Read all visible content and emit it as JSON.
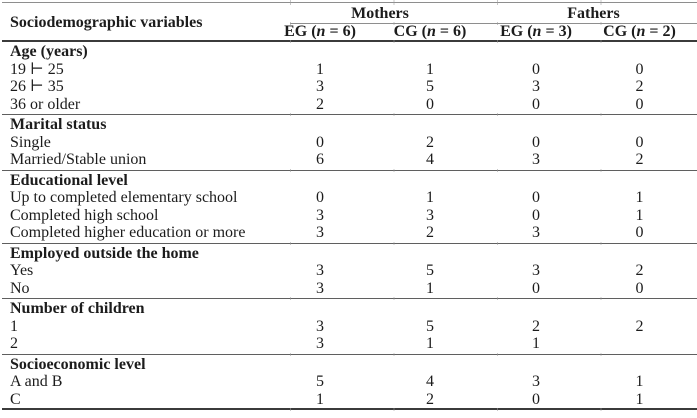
{
  "colors": {
    "text": "#1c1c1c",
    "rule_dark": "#3b3b3b",
    "rule_gray": "#8e8e8e",
    "rule_section": "#5f5f5f"
  },
  "table": {
    "corner_header": "Sociodemographic variables",
    "groups": [
      {
        "label": "Mothers"
      },
      {
        "label": "Fathers"
      }
    ],
    "columns": [
      {
        "pre": "EG (",
        "var": "n",
        "post": " = 6)"
      },
      {
        "pre": "CG (",
        "var": "n",
        "post": " = 6)"
      },
      {
        "pre": "EG (",
        "var": "n",
        "post": " = 3)"
      },
      {
        "pre": "CG (",
        "var": "n",
        "post": " = 2)"
      }
    ],
    "sections": [
      {
        "header": "Age (years)",
        "rows": [
          {
            "label": "19 ⊢ 25",
            "values": [
              "1",
              "1",
              "0",
              "0"
            ]
          },
          {
            "label": "26 ⊢ 35",
            "values": [
              "3",
              "5",
              "3",
              "2"
            ]
          },
          {
            "label": "36 or older",
            "values": [
              "2",
              "0",
              "0",
              "0"
            ]
          }
        ]
      },
      {
        "header": "Marital status",
        "rows": [
          {
            "label": "Single",
            "values": [
              "0",
              "2",
              "0",
              "0"
            ]
          },
          {
            "label": "Married/Stable union",
            "values": [
              "6",
              "4",
              "3",
              "2"
            ]
          }
        ]
      },
      {
        "header": "Educational level",
        "rows": [
          {
            "label": "Up to completed elementary school",
            "values": [
              "0",
              "1",
              "0",
              "1"
            ]
          },
          {
            "label": "Completed high school",
            "values": [
              "3",
              "3",
              "0",
              "1"
            ]
          },
          {
            "label": "Completed higher education or more",
            "values": [
              "3",
              "2",
              "3",
              "0"
            ]
          }
        ]
      },
      {
        "header": "Employed outside the home",
        "rows": [
          {
            "label": "Yes",
            "values": [
              "3",
              "5",
              "3",
              "2"
            ]
          },
          {
            "label": "No",
            "values": [
              "3",
              "1",
              "0",
              "0"
            ]
          }
        ]
      },
      {
        "header": "Number of children",
        "rows": [
          {
            "label": "1",
            "values": [
              "3",
              "5",
              "2",
              "2"
            ]
          },
          {
            "label": "2",
            "values": [
              "3",
              "1",
              "1",
              ""
            ]
          }
        ]
      },
      {
        "header": "Socioeconomic level",
        "rows": [
          {
            "label": "A and B",
            "values": [
              "5",
              "4",
              "3",
              "1"
            ]
          },
          {
            "label": "C",
            "values": [
              "1",
              "2",
              "0",
              "1"
            ]
          }
        ]
      }
    ]
  }
}
